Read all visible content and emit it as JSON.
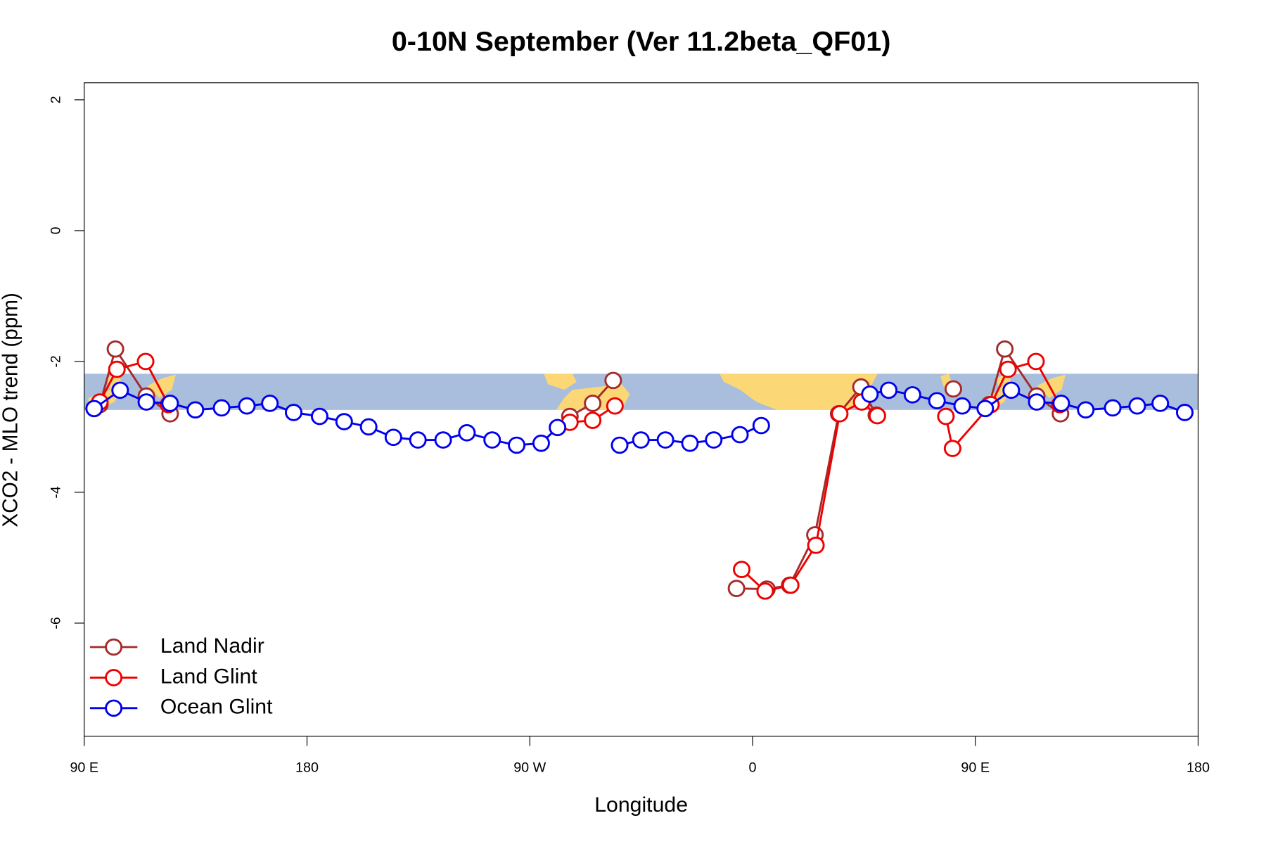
{
  "chart_data": {
    "type": "line",
    "title": "0-10N September (Ver 11.2beta_QF01)",
    "x_label": "Longitude",
    "y_label": "XCO2 - MLO trend (ppm)",
    "xlim": [
      90,
      540
    ],
    "ylim": [
      -7.73,
      2.26
    ],
    "xticks": [
      {
        "value": 90,
        "label": "90 E"
      },
      {
        "value": 180,
        "label": "180"
      },
      {
        "value": 270,
        "label": "90 W"
      },
      {
        "value": 360,
        "label": "0"
      },
      {
        "value": 450,
        "label": "90 E"
      },
      {
        "value": 540,
        "label": "180"
      }
    ],
    "yticks": [
      2,
      0,
      -2,
      -4,
      -6
    ],
    "legend": "bottom-left",
    "series": [
      {
        "name": "Land Nadir",
        "color": "#a52a2a",
        "x": [
          96.3,
          102.6,
          115.1,
          124.7,
          null,
          286.2,
          295.4,
          303.7,
          null,
          353.5,
          365.8,
          375.0,
          385.2,
          394.8,
          403.8,
          410.0,
          null,
          441.1,
          null,
          455.6,
          461.9,
          474.8,
          484.4
        ],
        "values": [
          -2.66,
          -1.81,
          -2.53,
          -2.8,
          null,
          -2.84,
          -2.64,
          -2.29,
          null,
          -5.47,
          -5.48,
          -5.42,
          -4.65,
          -2.8,
          -2.39,
          -2.82,
          null,
          -2.42,
          null,
          -2.66,
          -1.81,
          -2.53,
          -2.8
        ]
      },
      {
        "name": "Land Glint",
        "color": "#ee0000",
        "x": [
          96.3,
          103.2,
          114.8,
          124.0,
          null,
          286.2,
          295.4,
          304.4,
          null,
          355.6,
          365.1,
          375.4,
          385.6,
          395.2,
          404.1,
          410.4,
          null,
          438.1,
          440.8,
          456.3,
          463.2,
          474.5,
          484.1
        ],
        "values": [
          -2.62,
          -2.12,
          -2.0,
          -2.66,
          null,
          -2.93,
          -2.9,
          -2.68,
          null,
          -5.18,
          -5.51,
          -5.42,
          -4.81,
          -2.8,
          -2.62,
          -2.83,
          null,
          -2.84,
          -3.33,
          -2.66,
          -2.12,
          -2.0,
          -2.66
        ]
      },
      {
        "name": "Ocean Glint",
        "color": "#0000ee",
        "x": [
          94.0,
          104.5,
          115.1,
          124.7,
          134.9,
          145.5,
          155.7,
          165.0,
          174.6,
          185.1,
          195.0,
          204.9,
          214.9,
          224.8,
          235.0,
          244.6,
          254.8,
          264.7,
          274.6,
          281.2,
          null,
          306.3,
          314.9,
          324.8,
          334.7,
          344.3,
          354.9,
          363.5,
          null,
          407.4,
          415.0,
          424.6,
          434.5,
          444.7,
          454.0,
          464.5,
          474.8,
          484.7,
          494.6,
          505.5,
          515.4,
          524.7,
          534.6
        ],
        "values": [
          -2.72,
          -2.44,
          -2.62,
          -2.64,
          -2.74,
          -2.71,
          -2.68,
          -2.64,
          -2.78,
          -2.84,
          -2.92,
          -3.0,
          -3.16,
          -3.2,
          -3.2,
          -3.09,
          -3.2,
          -3.28,
          -3.25,
          -3.01,
          null,
          -3.28,
          -3.2,
          -3.2,
          -3.25,
          -3.2,
          -3.12,
          -2.98,
          null,
          -2.5,
          -2.44,
          -2.51,
          -2.6,
          -2.68,
          -2.72,
          -2.44,
          -2.62,
          -2.64,
          -2.74,
          -2.71,
          -2.68,
          -2.64,
          -2.78
        ]
      }
    ]
  }
}
